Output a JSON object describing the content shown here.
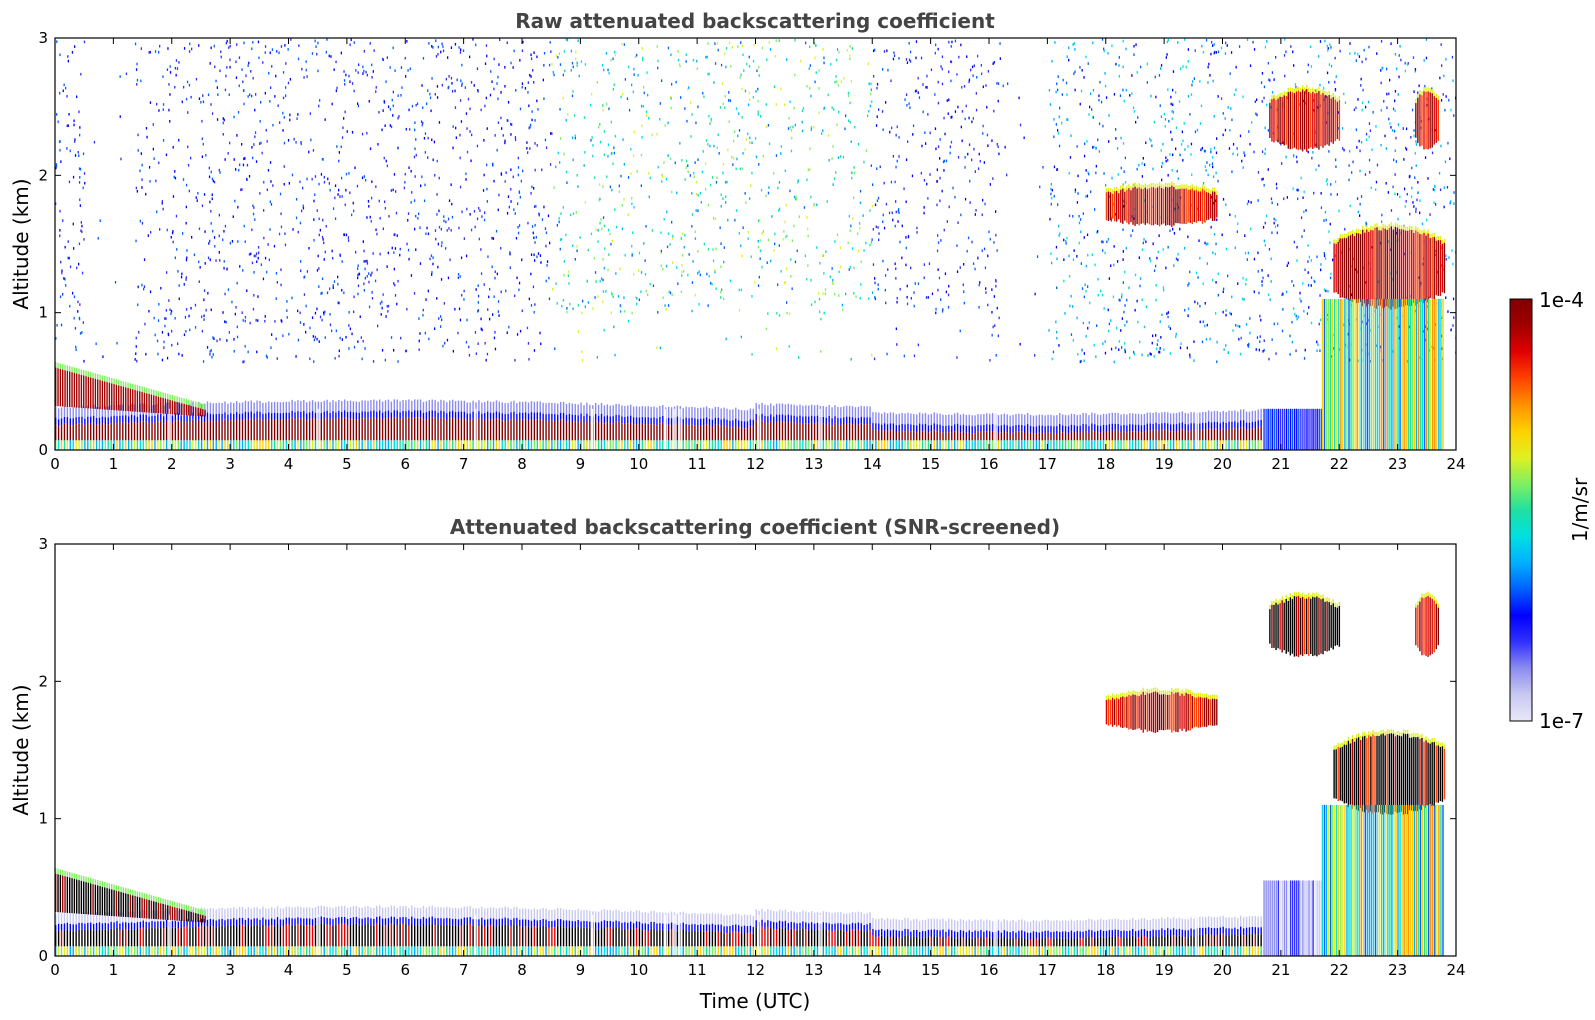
{
  "chart_data": [
    {
      "type": "heatmap",
      "title": "Raw attenuated backscattering coefficient",
      "xlabel": "",
      "ylabel": "Altitude (km)",
      "x_ticks": [
        "0",
        "1",
        "2",
        "3",
        "4",
        "5",
        "6",
        "7",
        "8",
        "9",
        "10",
        "11",
        "12",
        "13",
        "14",
        "15",
        "16",
        "17",
        "18",
        "19",
        "20",
        "21",
        "22",
        "23",
        "24"
      ],
      "y_ticks": [
        "0",
        "1",
        "2",
        "3"
      ],
      "xlim": [
        0,
        24
      ],
      "ylim": [
        0,
        3
      ],
      "features": [
        {
          "name": "boundary layer band",
          "t_start": 0,
          "t_end": 20.7,
          "alt_km": [
            0.05,
            0.3
          ],
          "level": "high"
        },
        {
          "name": "early residual layer",
          "t_start": 0,
          "t_end": 2.5,
          "alt_km": [
            0.25,
            0.6
          ],
          "level": "high"
        },
        {
          "name": "elevated cloud",
          "t_start": 18,
          "t_end": 19.9,
          "alt_km": [
            1.65,
            1.9
          ],
          "level": "high"
        },
        {
          "name": "upper cloud",
          "t_start": 20.8,
          "t_end": 22.0,
          "alt_km": [
            2.2,
            2.6
          ],
          "level": "high"
        },
        {
          "name": "low cloud deck",
          "t_start": 21.9,
          "t_end": 23.8,
          "alt_km": [
            1.05,
            1.6
          ],
          "level": "high"
        },
        {
          "name": "noise / background",
          "t_start": 0,
          "t_end": 24,
          "alt_km": [
            0.6,
            3.0
          ],
          "level": "low"
        }
      ]
    },
    {
      "type": "heatmap",
      "title": "Attenuated backscattering coefficient (SNR-screened)",
      "xlabel": "Time (UTC)",
      "ylabel": "Altitude (km)",
      "x_ticks": [
        "0",
        "1",
        "2",
        "3",
        "4",
        "5",
        "6",
        "7",
        "8",
        "9",
        "10",
        "11",
        "12",
        "13",
        "14",
        "15",
        "16",
        "17",
        "18",
        "19",
        "20",
        "21",
        "22",
        "23",
        "24"
      ],
      "y_ticks": [
        "0",
        "1",
        "2",
        "3"
      ],
      "xlim": [
        0,
        24
      ],
      "ylim": [
        0,
        3
      ],
      "features": [
        {
          "name": "boundary layer band",
          "t_start": 0,
          "t_end": 20.7,
          "alt_km": [
            0.05,
            0.3
          ],
          "level": "saturated"
        },
        {
          "name": "early residual layer",
          "t_start": 0,
          "t_end": 2.5,
          "alt_km": [
            0.25,
            0.6
          ],
          "level": "saturated"
        },
        {
          "name": "elevated cloud",
          "t_start": 18,
          "t_end": 19.9,
          "alt_km": [
            1.65,
            1.9
          ],
          "level": "high"
        },
        {
          "name": "upper cloud",
          "t_start": 20.8,
          "t_end": 22.0,
          "alt_km": [
            2.2,
            2.6
          ],
          "level": "saturated"
        },
        {
          "name": "low cloud deck",
          "t_start": 21.9,
          "t_end": 23.8,
          "alt_km": [
            1.05,
            1.6
          ],
          "level": "saturated"
        }
      ]
    }
  ],
  "colorbar": {
    "label": "1/m/sr",
    "max_label": "1e-4",
    "min_label": "1e-7",
    "scale": "log",
    "colors": [
      "#e8e8f8",
      "#c8c8f0",
      "#8c8cf0",
      "#3030ff",
      "#0000ff",
      "#0060ff",
      "#00b0ff",
      "#00e0e0",
      "#20e0a0",
      "#80f060",
      "#e0f020",
      "#ffd000",
      "#ff9000",
      "#ff4000",
      "#e00000",
      "#a00000",
      "#800000"
    ]
  }
}
